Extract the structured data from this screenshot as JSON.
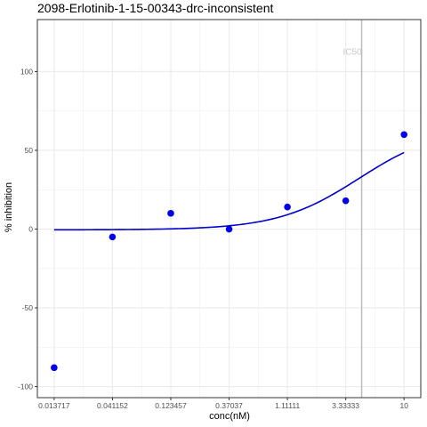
{
  "chart_data": {
    "type": "scatter",
    "title": "2098-Erlotinib-1-15-00343-drc-inconsistent",
    "xlabel": "conc(nM)",
    "ylabel": "% inhibition",
    "x_scale": "log",
    "x_ticks": [
      0.013717,
      0.041152,
      0.123457,
      0.37037,
      1.11111,
      3.33333,
      10
    ],
    "x_tick_labels": [
      "0.013717",
      "0.041152",
      "0.123457",
      "0.37037",
      "1.11111",
      "3.33333",
      "10"
    ],
    "y_ticks": [
      -100,
      -50,
      0,
      50,
      100
    ],
    "y_tick_labels": [
      "-100",
      "-50",
      "0",
      "50",
      "100"
    ],
    "xlim": [
      0.01,
      13.7
    ],
    "ylim": [
      -107,
      133
    ],
    "grid": true,
    "points": [
      {
        "x": 0.013717,
        "y": -88
      },
      {
        "x": 0.041152,
        "y": -5
      },
      {
        "x": 0.123457,
        "y": 10
      },
      {
        "x": 0.37037,
        "y": 0
      },
      {
        "x": 1.11111,
        "y": 14
      },
      {
        "x": 3.33333,
        "y": 18
      },
      {
        "x": 10,
        "y": 60
      }
    ],
    "fit_curve": {
      "model": "log-logistic",
      "bottom": -0.5,
      "top": 65,
      "ec50": 4.3,
      "hill": 1.3,
      "x_range": [
        0.013717,
        10
      ]
    },
    "ic50_line": {
      "x": 4.5,
      "label": "IC50"
    },
    "colors": {
      "points": "#0000ee",
      "curve": "#0000cc",
      "ic50_line": "#bdbdbd",
      "ic50_label": "#c8c8c8",
      "grid": "#ebebeb",
      "border": "#333333"
    }
  }
}
